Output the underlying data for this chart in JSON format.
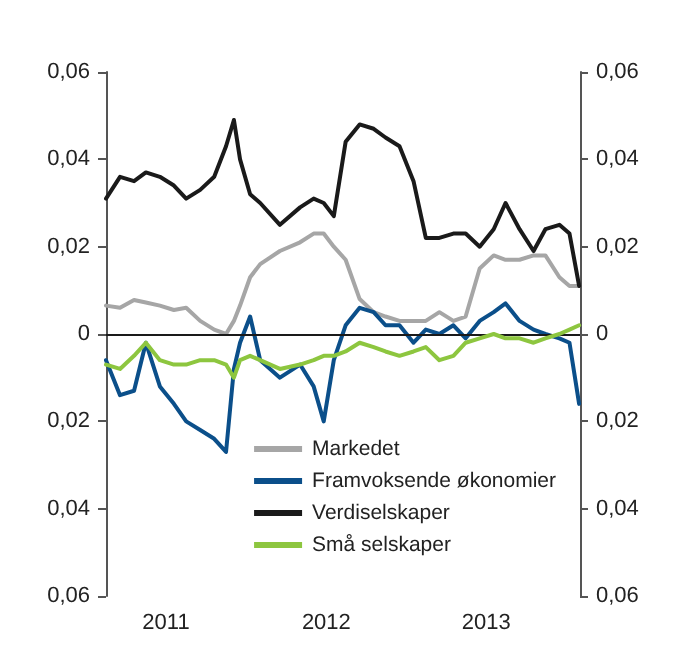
{
  "chart_data": {
    "type": "line",
    "x": [
      "2011-02-15",
      "2011-03-19",
      "2011-04-20",
      "2011-05-17",
      "2011-06-18",
      "2011-07-20",
      "2011-08-17",
      "2011-09-18",
      "2011-10-20",
      "2011-11-16",
      "2011-12-04",
      "2011-12-18",
      "2012-01-10",
      "2012-02-02",
      "2012-03-18",
      "2012-05-03",
      "2012-06-03",
      "2012-06-26",
      "2012-07-19",
      "2012-08-15",
      "2012-09-16",
      "2012-10-18",
      "2012-11-14",
      "2012-12-16",
      "2013-01-17",
      "2013-02-14",
      "2013-03-17",
      "2013-04-18",
      "2013-05-16",
      "2013-06-17",
      "2013-07-19",
      "2013-08-15",
      "2013-09-16",
      "2013-10-18",
      "2013-11-14",
      "2013-12-16",
      "2014-01-08",
      "2014-01-30"
    ],
    "series": [
      {
        "name": "Markedet",
        "color": "#a6a6a6",
        "values": [
          0.0065,
          0.006,
          0.0078,
          0.0072,
          0.0065,
          0.0055,
          0.006,
          0.003,
          0.001,
          0,
          0.003,
          0.0065,
          0.013,
          0.016,
          0.019,
          0.021,
          0.023,
          0.023,
          0.02,
          0.017,
          0.008,
          0.005,
          0.004,
          0.003,
          0.003,
          0.003,
          0.005,
          0.003,
          0.004,
          0.015,
          0.018,
          0.017,
          0.017,
          0.018,
          0.018,
          0.013,
          0.011,
          0.011
        ]
      },
      {
        "name": "Framvoksende økonomier",
        "color": "#0b4f8a",
        "values": [
          -0.006,
          -0.014,
          -0.013,
          -0.002,
          -0.012,
          -0.016,
          -0.02,
          -0.022,
          -0.024,
          -0.027,
          -0.008,
          -0.002,
          0.004,
          -0.006,
          -0.01,
          -0.007,
          -0.012,
          -0.02,
          -0.006,
          0.002,
          0.006,
          0.005,
          0.002,
          0.002,
          -0.002,
          0.001,
          0,
          0.002,
          -0.001,
          0.003,
          0.005,
          0.007,
          0.003,
          0.001,
          0,
          -0.001,
          -0.002,
          -0.016
        ]
      },
      {
        "name": "Verdiselskaper",
        "color": "#1a1a1a",
        "values": [
          0.031,
          0.036,
          0.035,
          0.037,
          0.036,
          0.034,
          0.031,
          0.033,
          0.036,
          0.043,
          0.049,
          0.04,
          0.032,
          0.03,
          0.025,
          0.029,
          0.031,
          0.03,
          0.027,
          0.044,
          0.048,
          0.047,
          0.045,
          0.043,
          0.035,
          0.022,
          0.022,
          0.023,
          0.023,
          0.02,
          0.024,
          0.03,
          0.024,
          0.019,
          0.024,
          0.025,
          0.023,
          0.011
        ]
      },
      {
        "name": "Små selskaper",
        "color": "#8dc63f",
        "values": [
          -0.007,
          -0.008,
          -0.005,
          -0.002,
          -0.006,
          -0.007,
          -0.007,
          -0.006,
          -0.006,
          -0.007,
          -0.01,
          -0.006,
          -0.005,
          -0.006,
          -0.008,
          -0.007,
          -0.006,
          -0.005,
          -0.005,
          -0.004,
          -0.002,
          -0.003,
          -0.004,
          -0.005,
          -0.004,
          -0.003,
          -0.006,
          -0.005,
          -0.002,
          -0.001,
          0,
          -0.001,
          -0.001,
          -0.002,
          -0.001,
          0,
          0.001,
          0.002
        ]
      }
    ],
    "xlim": [
      "2011-02-15",
      "2014-02-01"
    ],
    "xticks": [
      {
        "value": "2011-07-02",
        "label": "2011"
      },
      {
        "value": "2012-07-02",
        "label": "2012"
      },
      {
        "value": "2013-07-02",
        "label": "2013"
      }
    ],
    "ylim": [
      -0.06,
      0.06
    ],
    "yticks": [
      {
        "value": -0.06,
        "label": "0,06"
      },
      {
        "value": -0.04,
        "label": "0,04"
      },
      {
        "value": -0.02,
        "label": "0,02"
      },
      0,
      {
        "value": 0.02,
        "label": "0,02"
      },
      {
        "value": 0.04,
        "label": "0,04"
      },
      {
        "value": 0.06,
        "label": "0,06"
      }
    ],
    "y2lim": [
      -0.06,
      0.06
    ],
    "y2ticks": [
      {
        "value": -0.06,
        "label": "0,06"
      },
      {
        "value": -0.04,
        "label": "0,04"
      },
      {
        "value": -0.02,
        "label": "0,02"
      },
      0,
      {
        "value": 0.02,
        "label": "0,02"
      },
      {
        "value": 0.04,
        "label": "0,04"
      },
      {
        "value": 0.06,
        "label": "0,06"
      }
    ],
    "ref_lines": [
      {
        "axis": "y",
        "value": 0,
        "color": "#1a1a1a",
        "line_style": "solid"
      }
    ],
    "grid": false,
    "legend": "bottom right",
    "marker": "none",
    "line_style": "solid"
  }
}
